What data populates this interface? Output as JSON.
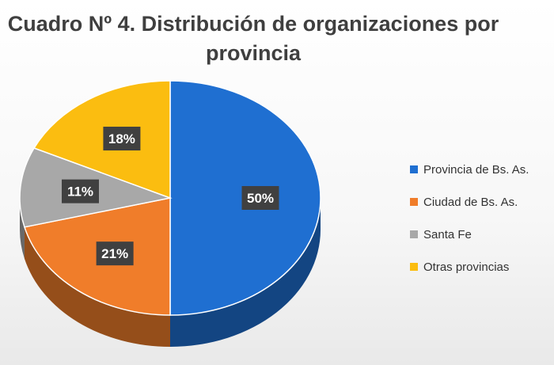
{
  "title": "Cuadro Nº 4. Distribución de organizaciones por provincia",
  "chart_data": {
    "type": "pie",
    "title": "Cuadro Nº 4. Distribución de organizaciones por provincia",
    "categories": [
      "Provincia de Bs. As.",
      "Ciudad de Bs. As.",
      "Santa Fe",
      "Otras provincias"
    ],
    "values": [
      50,
      21,
      11,
      18
    ],
    "data_labels": [
      "50%",
      "21%",
      "11%",
      "18%"
    ],
    "colors": [
      "#1f6fd1",
      "#f07d2a",
      "#a8a8a8",
      "#fbbd10"
    ],
    "legend_position": "right",
    "style": "3d"
  }
}
